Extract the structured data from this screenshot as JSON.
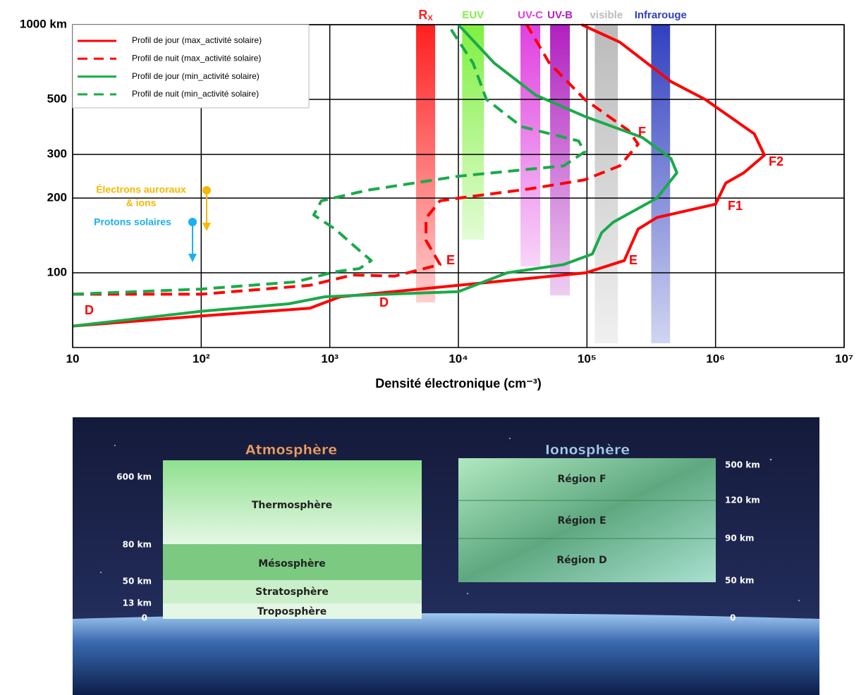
{
  "chart_data": {
    "type": "line",
    "xlabel": "Densité électronique (cm⁻³)",
    "xscale": "log",
    "yscale": "log",
    "grid": true,
    "xlim": [
      10,
      10000000
    ],
    "xticks": [
      10,
      {
        "value": 100,
        "label": "10²"
      },
      {
        "value": 1000,
        "label": "10³"
      },
      {
        "value": 10000,
        "label": "10⁴"
      },
      {
        "value": 100000,
        "label": "10⁵"
      },
      {
        "value": 1000000,
        "label": "10⁶"
      },
      {
        "value": 10000000,
        "label": "10⁷"
      }
    ],
    "ylim": [
      50,
      1000
    ],
    "yticks": [
      100,
      200,
      300,
      500,
      {
        "value": 1000,
        "label": "1000 km"
      }
    ],
    "legend": "top-left",
    "series": [
      {
        "name": "Profil de jour (max_activité solaire)",
        "color": "#ff0000",
        "dashed": false,
        "x": [
          10,
          100,
          700,
          1200,
          10000,
          66000,
          98000,
          195000,
          250000,
          350000,
          1000000,
          1200000,
          1660000,
          2400000,
          2000000,
          830000,
          450000,
          180000,
          91000
        ],
        "values": [
          61,
          67,
          72,
          80,
          89,
          98,
          100,
          112,
          150,
          167,
          189,
          230,
          253,
          298,
          363,
          500,
          590,
          850,
          1000
        ]
      },
      {
        "name": "Profil de nuit (max_activité solaire)",
        "color": "#ff0000",
        "dashed": true,
        "x": [
          10,
          100,
          700,
          1500,
          3200,
          7200,
          5600,
          5600,
          7200,
          10000,
          36000,
          96000,
          180000,
          250000,
          210000,
          96000,
          51000,
          34000
        ],
        "values": [
          82,
          82,
          89,
          98,
          97,
          108,
          135,
          166,
          195,
          200,
          218,
          237,
          270,
          330,
          375,
          500,
          700,
          1000
        ]
      },
      {
        "name": "Profil de jour (min_activité solaire)",
        "color": "#1aaa4a",
        "dashed": false,
        "x": [
          10,
          100,
          480,
          910,
          1500,
          10000,
          24000,
          66000,
          110000,
          130000,
          160000,
          350000,
          500000,
          450000,
          270000,
          96000,
          40000,
          19000,
          10000
        ],
        "values": [
          61,
          70,
          75,
          80,
          81,
          84,
          100,
          108,
          119,
          145,
          160,
          200,
          253,
          289,
          351,
          427,
          520,
          700,
          1000
        ]
      },
      {
        "name": "Profil de nuit (min_activité solaire)",
        "color": "#1aaa4a",
        "dashed": true,
        "x": [
          10,
          100,
          550,
          1100,
          1700,
          2100,
          1700,
          1100,
          750,
          860,
          1940,
          10000,
          66000,
          96000,
          86000,
          31000,
          16500,
          13000,
          8300
        ],
        "values": [
          82,
          86,
          92,
          101,
          104,
          112,
          123,
          150,
          171,
          195,
          215,
          245,
          270,
          307,
          340,
          388,
          500,
          700,
          1000
        ]
      }
    ],
    "bands": [
      {
        "name": "R",
        "subscript": "X",
        "color": "#ff2020",
        "xrange": [
          4690,
          6600
        ],
        "bottom": 76
      },
      {
        "name": "EUV",
        "color": "#80f040",
        "xrange": [
          10700,
          15800
        ],
        "bottom": 136
      },
      {
        "name": "UV-C",
        "color": "#e040e0",
        "xrange": [
          30400,
          43300
        ],
        "bottom": 106
      },
      {
        "name": "UV-B",
        "color": "#b020c0",
        "xrange": [
          51700,
          73600
        ],
        "bottom": 81
      },
      {
        "name": "visible",
        "color": "#bbbbbb",
        "xrange": [
          115000,
          174000
        ],
        "bottom": 52
      },
      {
        "name": "Infrarouge",
        "color": "#3040c0",
        "xrange": [
          316000,
          443000
        ],
        "bottom": 52
      }
    ],
    "annotations": [
      "D",
      "D",
      "E",
      "E",
      "F",
      "F1",
      "F2"
    ],
    "markers": [
      "Électrons auroraux",
      "& ions",
      "Protons solaires"
    ]
  },
  "diagram": {
    "atmosphere": {
      "title": "Atmosphère",
      "layers": [
        "Thermosphère",
        "Mésosphère",
        "Stratosphère",
        "Troposphère"
      ],
      "altitudes": [
        "600 km",
        "80 km",
        "50 km",
        "13 km",
        "0"
      ]
    },
    "ionosphere": {
      "title": "Ionosphère",
      "regions": [
        "Région F",
        "Région E",
        "Région D"
      ],
      "altitudes": [
        "500 km",
        "120 km",
        "90 km",
        "50 km",
        "0"
      ]
    }
  }
}
